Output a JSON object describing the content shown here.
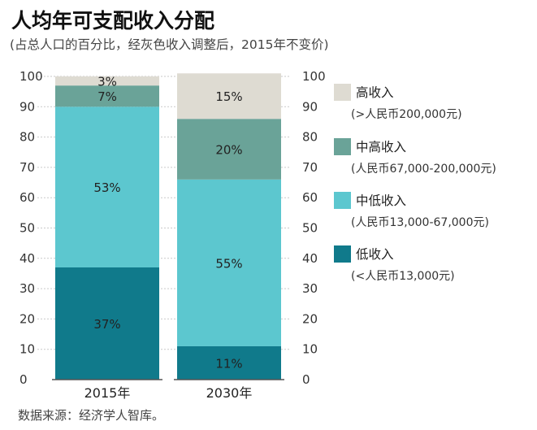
{
  "title": "人均年可支配收入分配",
  "subtitle": "(占总人口的百分比，经灰色收入调整后，2015年不变价)",
  "source": "数据来源：经济学人智库。",
  "chart_data": {
    "type": "bar",
    "stacked": true,
    "categories": [
      "2015年",
      "2030年"
    ],
    "ylim": [
      0,
      100
    ],
    "yticks": [
      0,
      10,
      20,
      30,
      40,
      50,
      60,
      70,
      80,
      90,
      100
    ],
    "grid": true,
    "legend_position": "right",
    "series": [
      {
        "name": "低收入",
        "range": "(<人民币13,000元)",
        "color": "#107a8b",
        "values": [
          37,
          11
        ],
        "labels": [
          "37%",
          "11%"
        ]
      },
      {
        "name": "中低收入",
        "range": "(人民币13,000-67,000元)",
        "color": "#5cc7cf",
        "values": [
          53,
          55
        ],
        "labels": [
          "53%",
          "55%"
        ]
      },
      {
        "name": "中高收入",
        "range": "(人民币67,000-200,000元)",
        "color": "#6aa398",
        "values": [
          7,
          20
        ],
        "labels": [
          "7%",
          "20%"
        ]
      },
      {
        "name": "高收入",
        "range": "(>人民币200,000元)",
        "color": "#dedbd2",
        "values": [
          3,
          15
        ],
        "labels": [
          "3%",
          "15%"
        ]
      }
    ]
  }
}
